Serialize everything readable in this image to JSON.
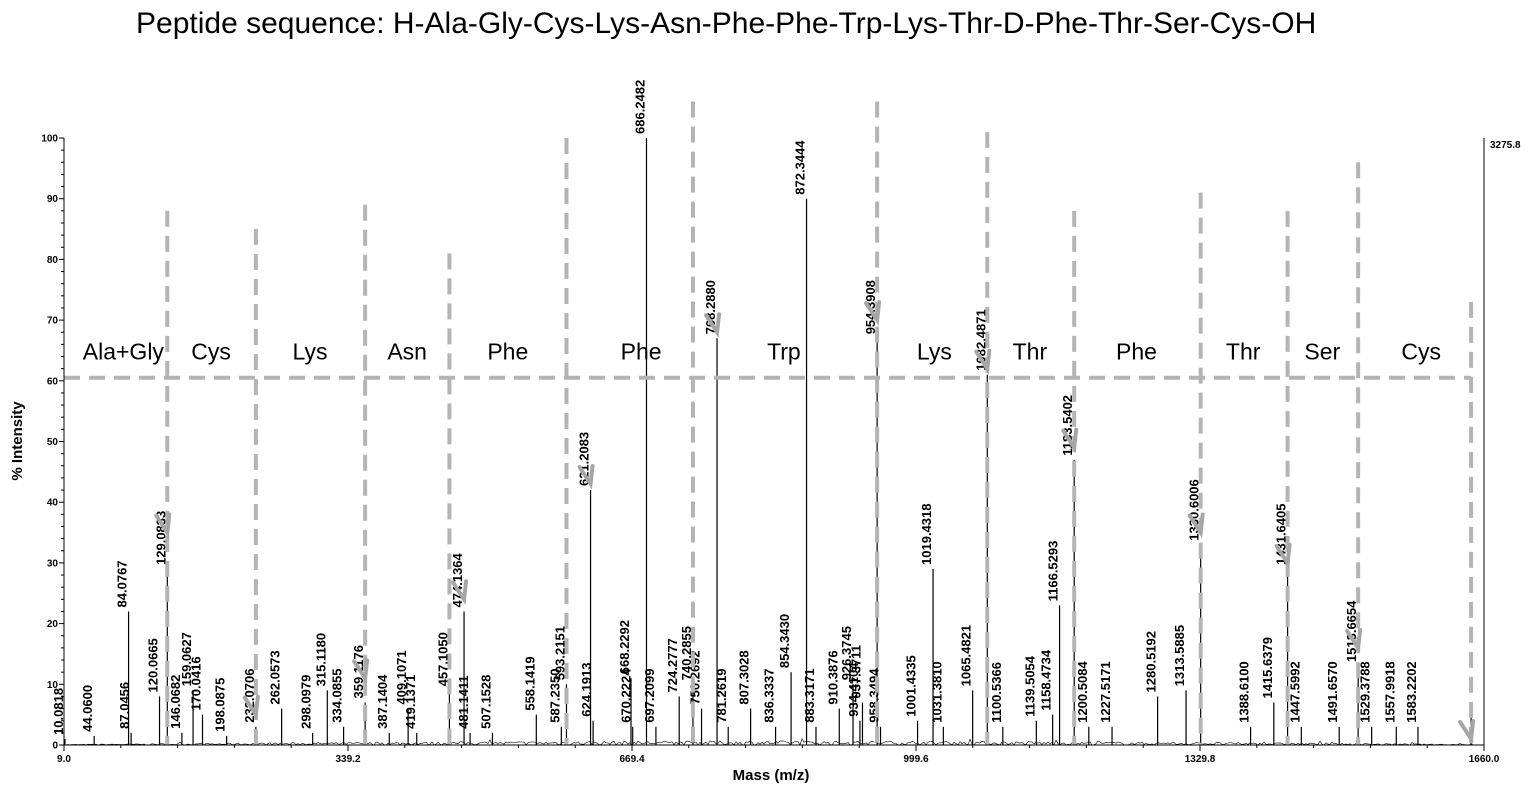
{
  "chart_data": {
    "type": "line",
    "title": "Peptide sequence: H-Ala-Gly-Cys-Lys-Asn-Phe-Phe-Trp-Lys-Thr-D-Phe-Thr-Ser-Cys-OH",
    "xlabel": "Mass (m/z)",
    "ylabel": "% Intensity",
    "xlim": [
      9.0,
      1660.0
    ],
    "ylim": [
      0,
      100
    ],
    "x_tick_labels": [
      "9.0",
      "339.2",
      "669.4",
      "999.6",
      "1329.8",
      "1660.0"
    ],
    "y_tick_labels": [
      "0",
      "10",
      "20",
      "30",
      "40",
      "50",
      "60",
      "70",
      "80",
      "90",
      "100"
    ],
    "max_intensity_label": "3275.8",
    "grid": false,
    "legend": "none",
    "peaks": [
      {
        "mz": 10.0818,
        "label": "10.0818",
        "intensity": 1
      },
      {
        "mz": 44.06,
        "label": "44.0600",
        "intensity": 1.5
      },
      {
        "mz": 84.0767,
        "label": "84.0767",
        "intensity": 22
      },
      {
        "mz": 87.0456,
        "label": "87.0456",
        "intensity": 2
      },
      {
        "mz": 120.0665,
        "label": "120.0665",
        "intensity": 8
      },
      {
        "mz": 129.0833,
        "label": "129.0833",
        "intensity": 29
      },
      {
        "mz": 146.0682,
        "label": "146.0682",
        "intensity": 2
      },
      {
        "mz": 159.0627,
        "label": "159.0627",
        "intensity": 9
      },
      {
        "mz": 170.0416,
        "label": "170.0416",
        "intensity": 5
      },
      {
        "mz": 198.0875,
        "label": "198.0875",
        "intensity": 1.5
      },
      {
        "mz": 232.0706,
        "label": "232.0706",
        "intensity": 3
      },
      {
        "mz": 262.0573,
        "label": "262.0573",
        "intensity": 6
      },
      {
        "mz": 298.0979,
        "label": "298.0979",
        "intensity": 2
      },
      {
        "mz": 315.118,
        "label": "315.1180",
        "intensity": 9
      },
      {
        "mz": 334.0855,
        "label": "334.0855",
        "intensity": 3
      },
      {
        "mz": 359.1176,
        "label": "359.1176",
        "intensity": 7
      },
      {
        "mz": 387.1404,
        "label": "387.1404",
        "intensity": 2
      },
      {
        "mz": 409.1071,
        "label": "409.1071",
        "intensity": 6
      },
      {
        "mz": 419.1371,
        "label": "419.1371",
        "intensity": 2
      },
      {
        "mz": 457.105,
        "label": "457.1050",
        "intensity": 9
      },
      {
        "mz": 474.1364,
        "label": "474.1364",
        "intensity": 22
      },
      {
        "mz": 481.1411,
        "label": "481.1411",
        "intensity": 2
      },
      {
        "mz": 507.1528,
        "label": "507.1528",
        "intensity": 2
      },
      {
        "mz": 558.1419,
        "label": "558.1419",
        "intensity": 5
      },
      {
        "mz": 587.235,
        "label": "587.2350",
        "intensity": 3
      },
      {
        "mz": 593.2151,
        "label": "593.2151",
        "intensity": 10
      },
      {
        "mz": 621.2083,
        "label": "621.2083",
        "intensity": 42
      },
      {
        "mz": 624.1913,
        "label": "624.1913",
        "intensity": 4
      },
      {
        "mz": 668.2292,
        "label": "668.2292",
        "intensity": 11
      },
      {
        "mz": 670.2224,
        "label": "670.2224",
        "intensity": 3
      },
      {
        "mz": 686.2482,
        "label": "686.2482",
        "intensity": 100
      },
      {
        "mz": 697.2099,
        "label": "697.2099",
        "intensity": 3
      },
      {
        "mz": 724.2777,
        "label": "724.2777",
        "intensity": 8
      },
      {
        "mz": 740.2855,
        "label": "740.2855",
        "intensity": 10
      },
      {
        "mz": 750.2692,
        "label": "750.2692",
        "intensity": 6
      },
      {
        "mz": 768.288,
        "label": "768.2880",
        "intensity": 67
      },
      {
        "mz": 781.2619,
        "label": "781.2619",
        "intensity": 3
      },
      {
        "mz": 807.3028,
        "label": "807.3028",
        "intensity": 6
      },
      {
        "mz": 836.3337,
        "label": "836.3337",
        "intensity": 3
      },
      {
        "mz": 854.343,
        "label": "854.3430",
        "intensity": 12
      },
      {
        "mz": 872.3444,
        "label": "872.3444",
        "intensity": 90
      },
      {
        "mz": 883.3171,
        "label": "883.3171",
        "intensity": 3
      },
      {
        "mz": 910.3876,
        "label": "910.3876",
        "intensity": 6
      },
      {
        "mz": 926.3745,
        "label": "926.3745",
        "intensity": 10
      },
      {
        "mz": 934.4104,
        "label": "934.4104",
        "intensity": 4
      },
      {
        "mz": 937.3711,
        "label": "937.3711",
        "intensity": 7
      },
      {
        "mz": 954.3908,
        "label": "954.3908",
        "intensity": 67
      },
      {
        "mz": 958.3494,
        "label": "958.3494",
        "intensity": 3
      },
      {
        "mz": 1001.4335,
        "label": "1001.4335",
        "intensity": 4
      },
      {
        "mz": 1019.4318,
        "label": "1019.4318",
        "intensity": 29
      },
      {
        "mz": 1031.381,
        "label": "1031.3810",
        "intensity": 3
      },
      {
        "mz": 1065.4821,
        "label": "1065.4821",
        "intensity": 9
      },
      {
        "mz": 1082.4871,
        "label": "1082.4871",
        "intensity": 61
      },
      {
        "mz": 1100.5366,
        "label": "1100.5366",
        "intensity": 3
      },
      {
        "mz": 1139.5054,
        "label": "1139.5054",
        "intensity": 4
      },
      {
        "mz": 1158.4734,
        "label": "1158.4734",
        "intensity": 5
      },
      {
        "mz": 1166.5293,
        "label": "1166.5293",
        "intensity": 23
      },
      {
        "mz": 1183.5402,
        "label": "1183.5402",
        "intensity": 47
      },
      {
        "mz": 1200.5084,
        "label": "1200.5084",
        "intensity": 3
      },
      {
        "mz": 1227.5171,
        "label": "1227.5171",
        "intensity": 3
      },
      {
        "mz": 1280.5192,
        "label": "1280.5192",
        "intensity": 8
      },
      {
        "mz": 1313.5885,
        "label": "1313.5885",
        "intensity": 9
      },
      {
        "mz": 1330.6006,
        "label": "1330.6006",
        "intensity": 33
      },
      {
        "mz": 1388.61,
        "label": "1388.6100",
        "intensity": 3
      },
      {
        "mz": 1415.6379,
        "label": "1415.6379",
        "intensity": 7
      },
      {
        "mz": 1431.6405,
        "label": "1431.6405",
        "intensity": 29
      },
      {
        "mz": 1447.5992,
        "label": "1447.5992",
        "intensity": 3
      },
      {
        "mz": 1491.657,
        "label": "1491.6570",
        "intensity": 3
      },
      {
        "mz": 1513.6654,
        "label": "1513.6654",
        "intensity": 13
      },
      {
        "mz": 1529.3788,
        "label": "1529.3788",
        "intensity": 3
      },
      {
        "mz": 1557.9918,
        "label": "1557.9918",
        "intensity": 3
      },
      {
        "mz": 1583.2202,
        "label": "1583.2202",
        "intensity": 3
      },
      {
        "mz": 1645.0,
        "label": "",
        "intensity": 6
      }
    ],
    "ladder": {
      "label_y": 63.5,
      "baseline_y": 60.5,
      "boundaries": [
        {
          "mz": 129.0833,
          "top": 88
        },
        {
          "mz": 232.0706,
          "top": 85
        },
        {
          "mz": 359.1176,
          "top": 89
        },
        {
          "mz": 457.105,
          "top": 81
        },
        {
          "mz": 593.2151,
          "top": 100
        },
        {
          "mz": 740.2855,
          "top": 106
        },
        {
          "mz": 954.3908,
          "top": 106
        },
        {
          "mz": 1082.4871,
          "top": 101
        },
        {
          "mz": 1183.5402,
          "top": 88
        },
        {
          "mz": 1330.6006,
          "top": 91
        },
        {
          "mz": 1431.6405,
          "top": 88
        },
        {
          "mz": 1513.6654,
          "top": 96
        },
        {
          "mz": 1645.0,
          "top": 73
        }
      ],
      "residues": [
        {
          "name": "Ala+Gly",
          "mz": 78
        },
        {
          "name": "Cys",
          "mz": 180
        },
        {
          "name": "Lys",
          "mz": 295
        },
        {
          "name": "Asn",
          "mz": 408
        },
        {
          "name": "Phe",
          "mz": 525
        },
        {
          "name": "Phe",
          "mz": 680
        },
        {
          "name": "Trp",
          "mz": 846
        },
        {
          "name": "Lys",
          "mz": 1021
        },
        {
          "name": "Thr",
          "mz": 1132
        },
        {
          "name": "Phe",
          "mz": 1256
        },
        {
          "name": "Thr",
          "mz": 1380
        },
        {
          "name": "Ser",
          "mz": 1472
        },
        {
          "name": "Cys",
          "mz": 1587
        }
      ],
      "arrows": [
        {
          "mz": 129.0833,
          "intensity": 35
        },
        {
          "mz": 232.0706,
          "intensity": 5
        },
        {
          "mz": 359.1176,
          "intensity": 11
        },
        {
          "mz": 474.1364,
          "intensity": 24
        },
        {
          "mz": 621.2083,
          "intensity": 43
        },
        {
          "mz": 768.288,
          "intensity": 68
        },
        {
          "mz": 954.3908,
          "intensity": 70
        },
        {
          "mz": 1082.4871,
          "intensity": 62
        },
        {
          "mz": 1183.5402,
          "intensity": 49
        },
        {
          "mz": 1330.6006,
          "intensity": 35
        },
        {
          "mz": 1431.6405,
          "intensity": 30
        },
        {
          "mz": 1513.6654,
          "intensity": 16
        },
        {
          "mz": 1645.0,
          "intensity": 1
        }
      ]
    }
  }
}
